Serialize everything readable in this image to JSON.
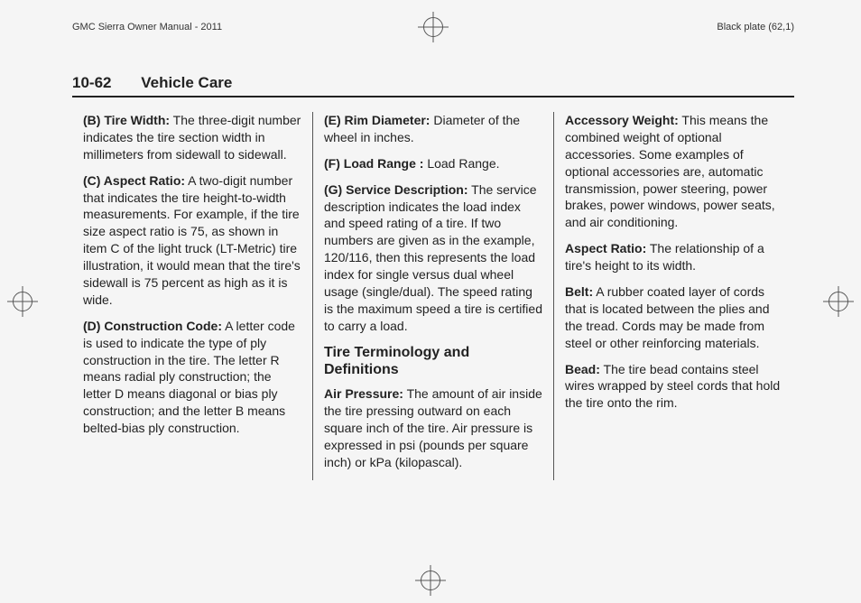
{
  "header": {
    "left": "GMC Sierra Owner Manual - 2011",
    "right": "Black plate (62,1)"
  },
  "section": {
    "page": "10-62",
    "title": "Vehicle Care"
  },
  "col1": {
    "b_label": "(B) Tire Width:",
    "b_text": "  The three-digit number indicates the tire section width in millimeters from sidewall to sidewall.",
    "c_label": "(C) Aspect Ratio:",
    "c_text": "  A two-digit number that indicates the tire height-to-width measurements. For example, if the tire size aspect ratio is 75, as shown in item C of the light truck (LT-Metric) tire illustration, it would mean that the tire's sidewall is 75 percent as high as it is wide.",
    "d_label": "(D) Construction Code:",
    "d_text": "  A letter code is used to indicate the type of ply construction in the tire. The letter R means radial ply construction; the letter D means diagonal or bias ply construction; and the letter B means belted-bias ply construction."
  },
  "col2": {
    "e_label": "(E) Rim Diameter:",
    "e_text": "  Diameter of the wheel in inches.",
    "f_label": "(F) Load Range :",
    "f_text": "  Load Range.",
    "g_label": "(G) Service Description:",
    "g_text": "  The service description indicates the load index and speed rating of a tire. If two numbers are given as in the example, 120/116, then this represents the load index for single versus dual wheel usage (single/dual). The speed rating is the maximum speed a tire is certified to carry a load.",
    "subhead": "Tire Terminology and Definitions",
    "air_label": "Air Pressure:",
    "air_text": "  The amount of air inside the tire pressing outward on each square inch of the tire. Air pressure is expressed in psi (pounds per square inch) or kPa (kilopascal)."
  },
  "col3": {
    "acc_label": "Accessory Weight:",
    "acc_text": "  This means the combined weight of optional accessories. Some examples of optional accessories are, automatic transmission, power steering, power brakes, power windows, power seats, and air conditioning.",
    "asp_label": "Aspect Ratio:",
    "asp_text": "  The relationship of a tire's height to its width.",
    "belt_label": "Belt:",
    "belt_text": "  A rubber coated layer of cords that is located between the plies and the tread. Cords may be made from steel or other reinforcing materials.",
    "bead_label": "Bead:",
    "bead_text": "  The tire bead contains steel wires wrapped by steel cords that hold the tire onto the rim."
  }
}
